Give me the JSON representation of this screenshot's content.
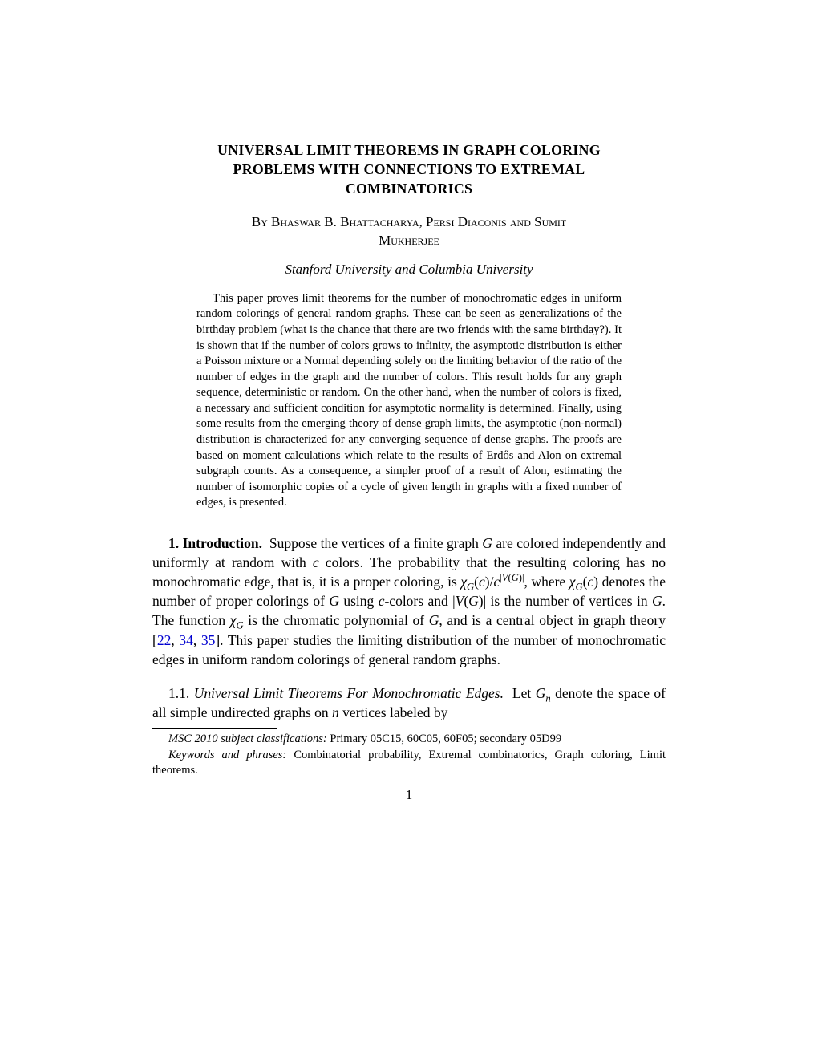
{
  "title_line1": "UNIVERSAL LIMIT THEOREMS IN GRAPH COLORING",
  "title_line2": "PROBLEMS WITH CONNECTIONS TO EXTREMAL",
  "title_line3": "COMBINATORICS",
  "authors_prefix": "By ",
  "authors_line1": "Bhaswar B. Bhattacharya, Persi Diaconis and Sumit",
  "authors_line2": "Mukherjee",
  "affiliation": "Stanford University and Columbia University",
  "abstract": "This paper proves limit theorems for the number of monochromatic edges in uniform random colorings of general random graphs. These can be seen as generalizations of the birthday problem (what is the chance that there are two friends with the same birthday?). It is shown that if the number of colors grows to infinity, the asymptotic distribution is either a Poisson mixture or a Normal depending solely on the limiting behavior of the ratio of the number of edges in the graph and the number of colors. This result holds for any graph sequence, deterministic or random. On the other hand, when the number of colors is fixed, a necessary and sufficient condition for asymptotic normality is determined. Finally, using some results from the emerging theory of dense graph limits, the asymptotic (non-normal) distribution is characterized for any converging sequence of dense graphs. The proofs are based on moment calculations which relate to the results of Erdős and Alon on extremal subgraph counts. As a consequence, a simpler proof of a result of Alon, estimating the number of isomorphic copies of a cycle of given length in graphs with a fixed number of edges, is presented.",
  "section_number": "1.",
  "section_name": "Introduction.",
  "section_body_part1": "Suppose the vertices of a finite graph ",
  "section_body_part2": " are colored independently and uniformly at random with ",
  "section_body_part3": " colors. The probability that the resulting coloring has no monochromatic edge, that is, it is a proper coloring, is ",
  "section_body_part4": ", where ",
  "section_body_part5": " denotes the number of proper colorings of ",
  "section_body_part6": " using ",
  "section_body_part7": "-colors and ",
  "section_body_part8": " is the number of vertices in ",
  "section_body_part9": ". The function ",
  "section_body_part10": " is the chromatic polynomial of ",
  "section_body_part11": ", and is a central object in graph theory [",
  "cite1": "22",
  "cite_sep1": ", ",
  "cite2": "34",
  "cite_sep2": ", ",
  "cite3": "35",
  "section_body_part12": "]. This paper studies the limiting distribution of the number of monochromatic edges in uniform random colorings of general random graphs.",
  "subsection_number": "1.1.",
  "subsection_title": "Universal Limit Theorems For Monochromatic Edges.",
  "subsection_body_part1": "Let ",
  "subsection_body_part2": " denote the space of all simple undirected graphs on ",
  "subsection_body_part3": " vertices labeled by",
  "footnote1_label": "MSC 2010 subject classifications:",
  "footnote1_text": " Primary 05C15, 60C05, 60F05; secondary 05D99",
  "footnote2_label": "Keywords and phrases:",
  "footnote2_text": " Combinatorial probability, Extremal combinatorics, Graph coloring, Limit theorems.",
  "page_number": "1"
}
